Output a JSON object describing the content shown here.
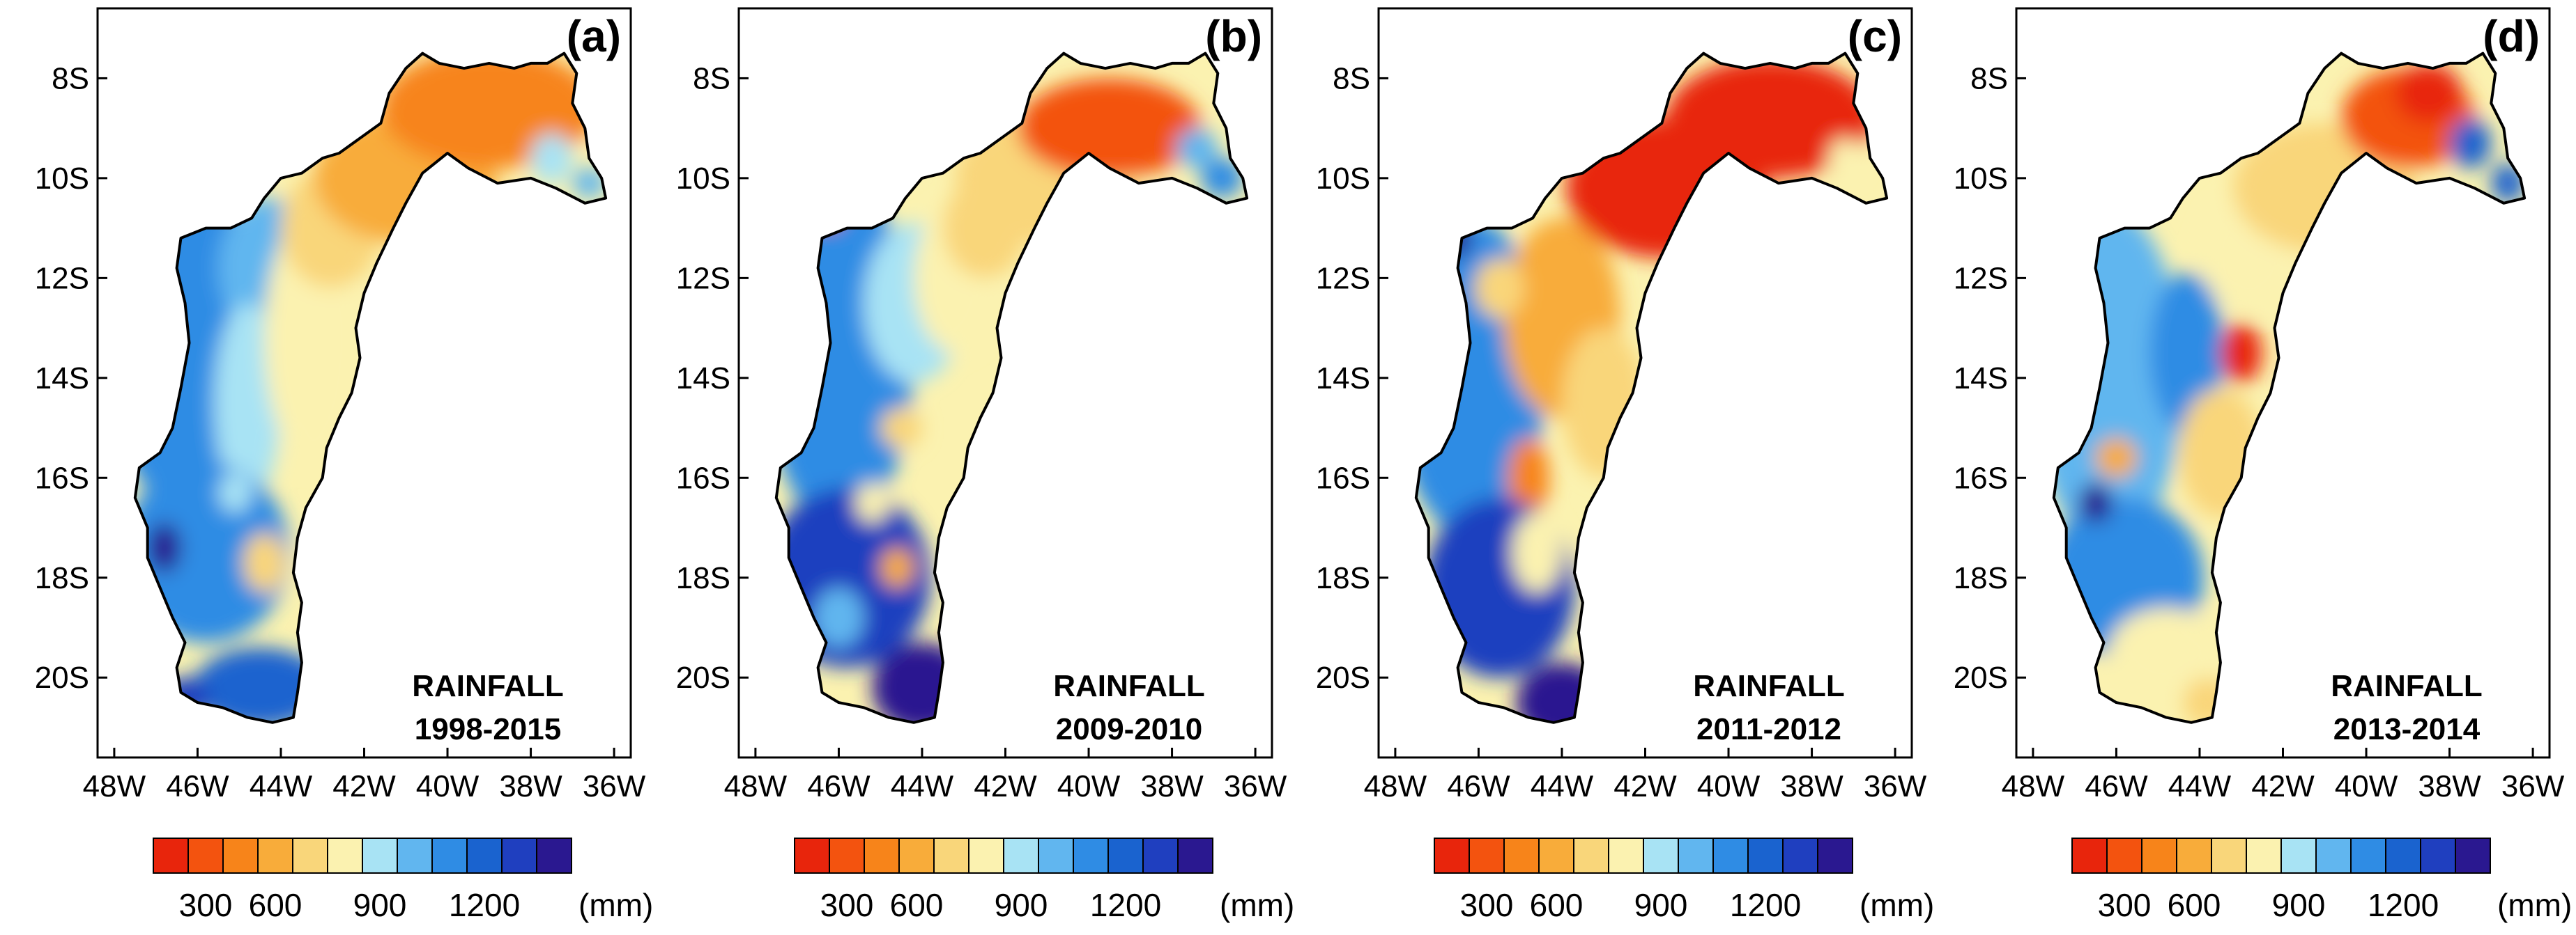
{
  "figure": {
    "colorscale": {
      "colors": [
        "#e8250c",
        "#f3530f",
        "#f7841a",
        "#f8ac3a",
        "#f9d67a",
        "#fbf2b0",
        "#a8e3f4",
        "#61b6ef",
        "#2f8ce4",
        "#1a63cf",
        "#1f3fbf",
        "#2a1890"
      ],
      "tick_labels": [
        "300",
        "600",
        "900",
        "1200"
      ],
      "tick_after_box": [
        1,
        3,
        6,
        9
      ],
      "unit": "(mm)"
    },
    "axes": {
      "x_ticks": [
        "48W",
        "46W",
        "44W",
        "42W",
        "40W",
        "38W",
        "36W"
      ],
      "x_values": [
        -48,
        -46,
        -44,
        -42,
        -40,
        -38,
        -36
      ],
      "y_ticks": [
        "8S",
        "10S",
        "12S",
        "14S",
        "16S",
        "18S",
        "20S"
      ],
      "y_values": [
        -8,
        -10,
        -12,
        -14,
        -16,
        -18,
        -20
      ],
      "lon_range": [
        -48.4,
        -35.6
      ],
      "lat_range": [
        -21.6,
        -6.6
      ]
    },
    "panels": [
      {
        "label": "(a)",
        "title": "RAINFALL",
        "period": "1998-2015",
        "blobs": [
          {
            "lon": -46.5,
            "lat": -13.0,
            "rx": 1.8,
            "ry": 3.5,
            "color": "#2f8ce4"
          },
          {
            "lon": -44.3,
            "lat": -11.8,
            "rx": 1.2,
            "ry": 1.4,
            "color": "#61b6ef"
          },
          {
            "lon": -44.8,
            "lat": -14.5,
            "rx": 0.8,
            "ry": 2.0,
            "color": "#a8e3f4"
          },
          {
            "lon": -43.2,
            "lat": -13.2,
            "rx": 1.2,
            "ry": 2.6,
            "color": "#fbf2b0"
          },
          {
            "lon": -42.8,
            "lat": -11.0,
            "rx": 1.2,
            "ry": 1.2,
            "color": "#f9d67a"
          },
          {
            "lon": -45.8,
            "lat": -17.5,
            "rx": 2.0,
            "ry": 1.8,
            "color": "#2f8ce4"
          },
          {
            "lon": -46.8,
            "lat": -17.4,
            "rx": 0.4,
            "ry": 0.5,
            "color": "#2a1890"
          },
          {
            "lon": -44.4,
            "lat": -17.7,
            "rx": 0.5,
            "ry": 0.6,
            "color": "#f9d67a"
          },
          {
            "lon": -45.1,
            "lat": -16.3,
            "rx": 0.4,
            "ry": 0.4,
            "color": "#a8e3f4"
          },
          {
            "lon": -44.5,
            "lat": -20.2,
            "rx": 1.6,
            "ry": 0.8,
            "color": "#1a63cf"
          },
          {
            "lon": -46.3,
            "lat": -20.4,
            "rx": 0.6,
            "ry": 0.4,
            "color": "#1f3fbf"
          },
          {
            "lon": -41.0,
            "lat": -10.0,
            "rx": 2.2,
            "ry": 1.3,
            "color": "#f8ac3a"
          },
          {
            "lon": -39.0,
            "lat": -8.6,
            "rx": 2.6,
            "ry": 1.2,
            "color": "#f7841a"
          },
          {
            "lon": -37.5,
            "lat": -9.6,
            "rx": 0.5,
            "ry": 0.5,
            "color": "#a8e3f4"
          },
          {
            "lon": -36.6,
            "lat": -10.1,
            "rx": 0.4,
            "ry": 0.3,
            "color": "#61b6ef"
          }
        ]
      },
      {
        "label": "(b)",
        "title": "RAINFALL",
        "period": "2009-2010",
        "blobs": [
          {
            "lon": -46.0,
            "lat": -13.5,
            "rx": 1.8,
            "ry": 3.5,
            "color": "#2f8ce4"
          },
          {
            "lon": -44.2,
            "lat": -12.5,
            "rx": 1.2,
            "ry": 1.6,
            "color": "#a8e3f4"
          },
          {
            "lon": -43.2,
            "lat": -12.0,
            "rx": 1.0,
            "ry": 1.5,
            "color": "#fbf2b0"
          },
          {
            "lon": -42.5,
            "lat": -11.0,
            "rx": 1.0,
            "ry": 1.0,
            "color": "#f9d67a"
          },
          {
            "lon": -44.5,
            "lat": -15.0,
            "rx": 0.5,
            "ry": 0.4,
            "color": "#f9d67a"
          },
          {
            "lon": -45.8,
            "lat": -18.0,
            "rx": 2.0,
            "ry": 1.8,
            "color": "#1f3fbf"
          },
          {
            "lon": -44.6,
            "lat": -17.8,
            "rx": 0.4,
            "ry": 0.4,
            "color": "#f8ac3a"
          },
          {
            "lon": -45.2,
            "lat": -16.5,
            "rx": 0.4,
            "ry": 0.4,
            "color": "#fbf2b0"
          },
          {
            "lon": -44.0,
            "lat": -20.2,
            "rx": 1.2,
            "ry": 0.9,
            "color": "#2a1890"
          },
          {
            "lon": -46.0,
            "lat": -18.8,
            "rx": 0.6,
            "ry": 0.6,
            "color": "#61b6ef"
          },
          {
            "lon": -46.3,
            "lat": -10.7,
            "rx": 0.4,
            "ry": 0.3,
            "color": "#e8250c"
          },
          {
            "lon": -41.0,
            "lat": -10.0,
            "rx": 2.2,
            "ry": 1.3,
            "color": "#f9d67a"
          },
          {
            "lon": -39.5,
            "lat": -9.0,
            "rx": 2.2,
            "ry": 1.0,
            "color": "#f3530f"
          },
          {
            "lon": -37.4,
            "lat": -9.4,
            "rx": 0.5,
            "ry": 0.4,
            "color": "#61b6ef"
          },
          {
            "lon": -36.8,
            "lat": -10.0,
            "rx": 0.5,
            "ry": 0.4,
            "color": "#2f8ce4"
          }
        ]
      },
      {
        "label": "(c)",
        "title": "RAINFALL",
        "period": "2011-2012",
        "blobs": [
          {
            "lon": -46.2,
            "lat": -14.0,
            "rx": 1.8,
            "ry": 3.2,
            "color": "#2f8ce4"
          },
          {
            "lon": -44.0,
            "lat": -12.8,
            "rx": 1.4,
            "ry": 2.0,
            "color": "#f8ac3a"
          },
          {
            "lon": -45.5,
            "lat": -12.2,
            "rx": 0.6,
            "ry": 0.6,
            "color": "#f9d67a"
          },
          {
            "lon": -43.0,
            "lat": -14.5,
            "rx": 1.0,
            "ry": 1.5,
            "color": "#f9d67a"
          },
          {
            "lon": -44.8,
            "lat": -16.0,
            "rx": 0.5,
            "ry": 0.8,
            "color": "#f7841a"
          },
          {
            "lon": -45.5,
            "lat": -18.2,
            "rx": 1.8,
            "ry": 1.8,
            "color": "#1f3fbf"
          },
          {
            "lon": -44.6,
            "lat": -17.5,
            "rx": 0.6,
            "ry": 0.8,
            "color": "#fbf2b0"
          },
          {
            "lon": -44.0,
            "lat": -20.5,
            "rx": 1.1,
            "ry": 0.8,
            "color": "#2a1890"
          },
          {
            "lon": -46.5,
            "lat": -11.2,
            "rx": 0.3,
            "ry": 0.4,
            "color": "#2a1890"
          },
          {
            "lon": -41.5,
            "lat": -10.2,
            "rx": 2.4,
            "ry": 1.4,
            "color": "#e8250c"
          },
          {
            "lon": -39.0,
            "lat": -8.8,
            "rx": 2.5,
            "ry": 1.2,
            "color": "#e8250c"
          },
          {
            "lon": -37.2,
            "lat": -9.6,
            "rx": 0.4,
            "ry": 0.4,
            "color": "#fbf2b0"
          }
        ]
      },
      {
        "label": "(d)",
        "title": "RAINFALL",
        "period": "2013-2014",
        "blobs": [
          {
            "lon": -46.2,
            "lat": -14.0,
            "rx": 1.8,
            "ry": 3.4,
            "color": "#61b6ef"
          },
          {
            "lon": -44.3,
            "lat": -13.5,
            "rx": 0.9,
            "ry": 1.6,
            "color": "#2f8ce4"
          },
          {
            "lon": -43.0,
            "lat": -13.5,
            "rx": 0.5,
            "ry": 0.6,
            "color": "#e8250c"
          },
          {
            "lon": -43.5,
            "lat": -15.5,
            "rx": 1.0,
            "ry": 1.3,
            "color": "#f9d67a"
          },
          {
            "lon": -42.8,
            "lat": -11.5,
            "rx": 1.2,
            "ry": 1.2,
            "color": "#fbf2b0"
          },
          {
            "lon": -45.8,
            "lat": -18.0,
            "rx": 1.9,
            "ry": 1.6,
            "color": "#2f8ce4"
          },
          {
            "lon": -46.0,
            "lat": -15.6,
            "rx": 0.5,
            "ry": 0.4,
            "color": "#f8ac3a"
          },
          {
            "lon": -44.8,
            "lat": -19.5,
            "rx": 1.4,
            "ry": 0.9,
            "color": "#fbf2b0"
          },
          {
            "lon": -43.8,
            "lat": -20.5,
            "rx": 0.6,
            "ry": 0.5,
            "color": "#f9d67a"
          },
          {
            "lon": -46.5,
            "lat": -16.5,
            "rx": 0.4,
            "ry": 0.4,
            "color": "#2a1890"
          },
          {
            "lon": -41.0,
            "lat": -10.2,
            "rx": 2.2,
            "ry": 1.3,
            "color": "#f9d67a"
          },
          {
            "lon": -39.0,
            "lat": -8.8,
            "rx": 1.6,
            "ry": 1.0,
            "color": "#f3530f"
          },
          {
            "lon": -38.5,
            "lat": -8.3,
            "rx": 0.8,
            "ry": 0.6,
            "color": "#e8250c"
          },
          {
            "lon": -37.5,
            "lat": -9.3,
            "rx": 0.5,
            "ry": 0.5,
            "color": "#1a63cf"
          },
          {
            "lon": -36.6,
            "lat": -10.1,
            "rx": 0.4,
            "ry": 0.4,
            "color": "#1a63cf"
          }
        ]
      }
    ]
  }
}
